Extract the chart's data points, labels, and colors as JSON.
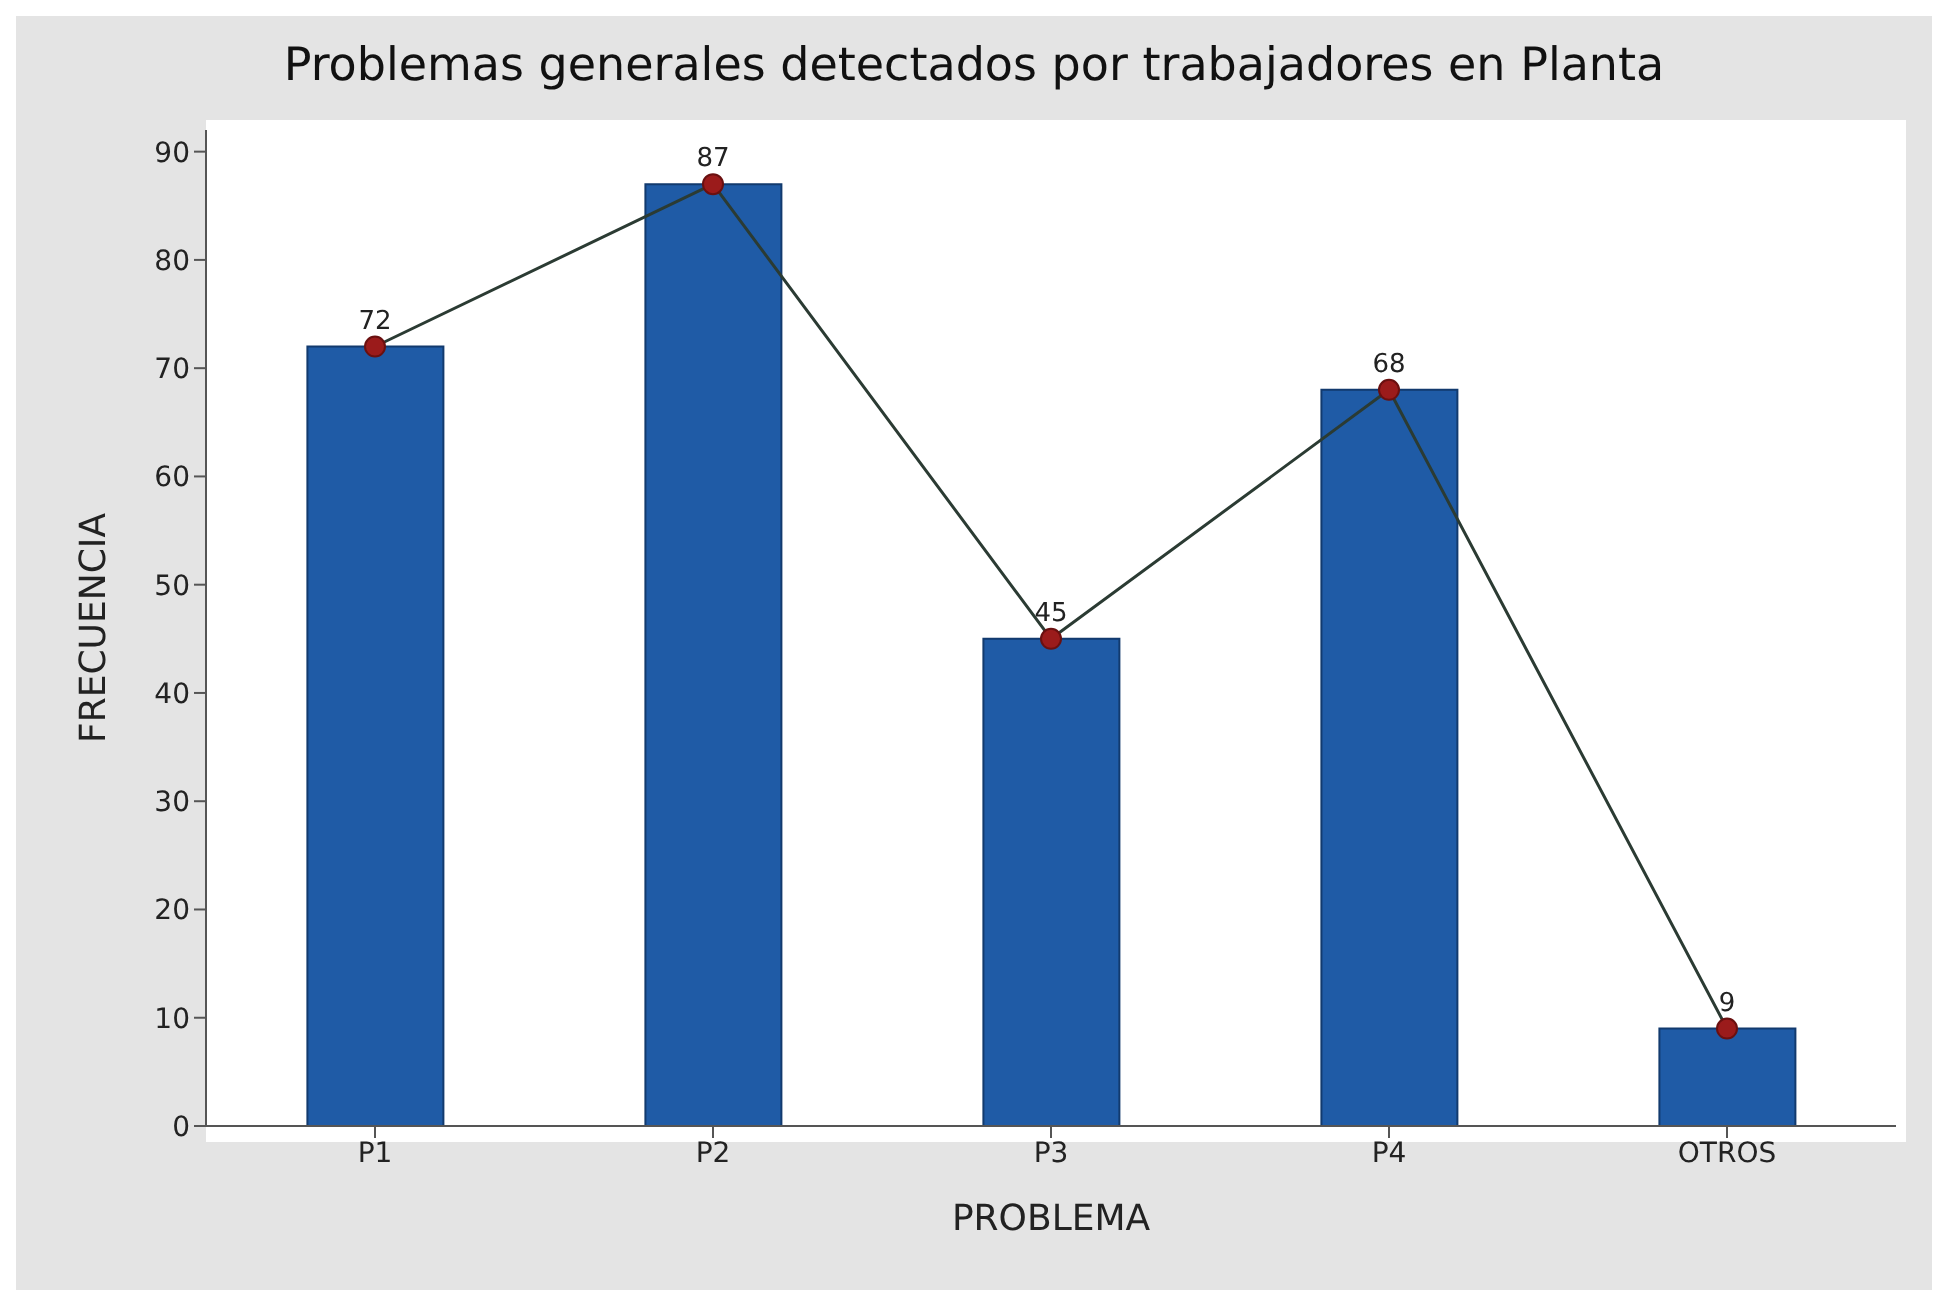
{
  "chart_data": {
    "type": "bar",
    "title": "Problemas generales detectados por trabajadores en Planta",
    "xlabel": "PROBLEMA",
    "ylabel": "FRECUENCIA",
    "categories": [
      "P1",
      "P2",
      "P3",
      "P4",
      "OTROS"
    ],
    "series": [
      {
        "color": "#1f5ba6",
        "values": [
          72,
          87,
          45,
          68,
          9
        ]
      },
      {
        "type": "line",
        "color": "#2b3b33",
        "values": [
          72,
          87,
          45,
          68,
          9
        ],
        "value_labels": [
          "72",
          "87",
          "45",
          "68",
          "9"
        ]
      }
    ],
    "ylim": [
      0,
      92
    ],
    "yticks": [
      0,
      10,
      20,
      30,
      40,
      50,
      60,
      70,
      80,
      90
    ],
    "grid": false,
    "legend": false,
    "marker": "circle"
  }
}
